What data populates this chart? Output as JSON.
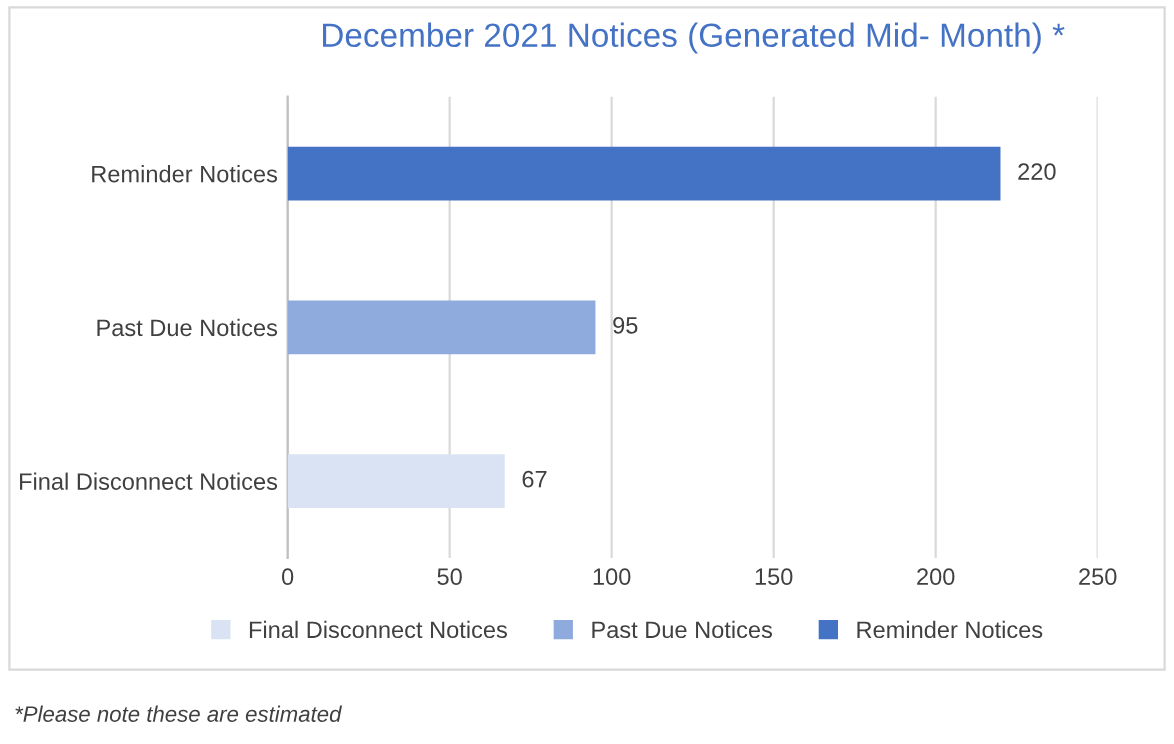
{
  "chart_data": {
    "type": "bar",
    "orientation": "horizontal",
    "title": "December 2021 Notices (Generated Mid- Month) *",
    "categories": [
      "Reminder Notices",
      "Past Due Notices",
      "Final Disconnect Notices"
    ],
    "series": [
      {
        "name": "Final Disconnect Notices",
        "color": "#dae3f3",
        "values": [
          null,
          null,
          67
        ]
      },
      {
        "name": "Past Due Notices",
        "color": "#8faadc",
        "values": [
          null,
          95,
          null
        ]
      },
      {
        "name": "Reminder Notices",
        "color": "#4472c4",
        "values": [
          220,
          null,
          null
        ]
      }
    ],
    "xlim": [
      0,
      250
    ],
    "xticks": [
      0,
      50,
      100,
      150,
      200,
      250
    ],
    "grid": "x",
    "legend": "bottom",
    "data_labels": true,
    "annotations": [
      "*Please note these are estimated"
    ]
  }
}
